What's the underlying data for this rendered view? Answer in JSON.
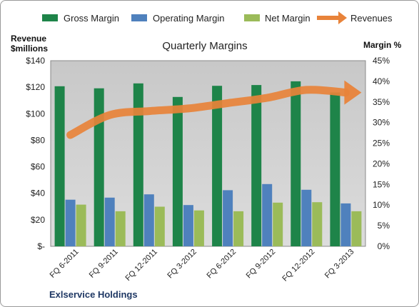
{
  "chart_data": {
    "type": "bar",
    "title": "Quarterly Margins",
    "company": "Exlservice Holdings",
    "left_axis_title": [
      "Revenue",
      "$millions"
    ],
    "right_axis_title": "Margin %",
    "left_ticks": [
      "$140",
      "$120",
      "$100",
      "$80",
      "$60",
      "$40",
      "$20",
      "$-"
    ],
    "right_ticks": [
      "45%",
      "40%",
      "35%",
      "30%",
      "25%",
      "20%",
      "15%",
      "10%",
      "5%",
      "0%"
    ],
    "categories": [
      "FQ 6-2011",
      "FQ 9-2011",
      "FQ 12-2011",
      "FQ 3-2012",
      "FQ 6-2012",
      "FQ 9-2012",
      "FQ 12-2012",
      "FQ 3-2013"
    ],
    "ylim_revenue": [
      0,
      140
    ],
    "ylim_margin": [
      0,
      45
    ],
    "grid": false,
    "legend_position": "top",
    "series": [
      {
        "name": "Gross Margin",
        "type": "bar",
        "axis": "right",
        "color": "#1e8449",
        "values": [
          38.8,
          38.3,
          39.5,
          36.2,
          38.9,
          39.1,
          40.0,
          37.3
        ]
      },
      {
        "name": "Operating Margin",
        "type": "bar",
        "axis": "right",
        "color": "#4f81bd",
        "values": [
          11.3,
          11.8,
          12.6,
          10.0,
          13.6,
          15.1,
          13.7,
          10.4
        ]
      },
      {
        "name": "Net Margin",
        "type": "bar",
        "axis": "right",
        "color": "#9bbb59",
        "values": [
          10.1,
          8.5,
          9.6,
          8.7,
          8.5,
          10.6,
          10.7,
          8.5
        ]
      },
      {
        "name": "Revenues",
        "type": "line-arrow",
        "axis": "left",
        "color": "#e8833a",
        "values": [
          84,
          99,
          102,
          104,
          108,
          112,
          118,
          116
        ]
      }
    ]
  }
}
